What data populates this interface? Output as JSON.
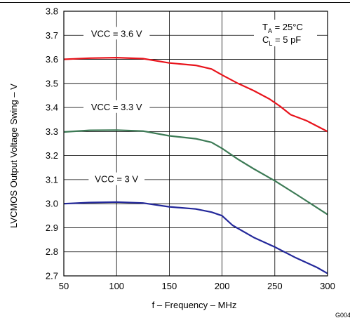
{
  "chart_data": {
    "type": "line",
    "xlabel": "f – Frequency – MHz",
    "ylabel": "LVCMOS Output Voltage Swing – V",
    "xlim": [
      50,
      300
    ],
    "ylim": [
      2.7,
      3.8
    ],
    "xticks": [
      "50",
      "100",
      "150",
      "200",
      "250",
      "300"
    ],
    "yticks": [
      "3.8",
      "3.7",
      "3.6",
      "3.5",
      "3.4",
      "3.3",
      "3.2",
      "3.1",
      "3.0",
      "2.9",
      "2.8",
      "2.7"
    ],
    "grid": true,
    "conditions": {
      "ta_main": "T",
      "ta_sub": "A",
      "ta_rest": " = 25°C",
      "cl_main": "C",
      "cl_sub": "L",
      "cl_rest": " = 5 pF"
    },
    "figure_code": "G004",
    "series": [
      {
        "name": "VCC = 3.6 V",
        "color": "#e8131b",
        "x": [
          50,
          75,
          100,
          125,
          150,
          175,
          190,
          200,
          215,
          230,
          245,
          255,
          265,
          280,
          300
        ],
        "y": [
          3.6,
          3.605,
          3.607,
          3.603,
          3.585,
          3.575,
          3.56,
          3.535,
          3.5,
          3.47,
          3.435,
          3.405,
          3.37,
          3.345,
          3.3
        ]
      },
      {
        "name": "VCC = 3.3 V",
        "color": "#3c7a55",
        "x": [
          50,
          75,
          100,
          125,
          150,
          175,
          190,
          200,
          215,
          230,
          250,
          270,
          300
        ],
        "y": [
          3.298,
          3.305,
          3.306,
          3.302,
          3.282,
          3.27,
          3.255,
          3.23,
          3.185,
          3.145,
          3.095,
          3.04,
          2.955
        ]
      },
      {
        "name": "VCC = 3 V",
        "color": "#23289a",
        "x": [
          50,
          75,
          100,
          125,
          150,
          175,
          190,
          200,
          210,
          230,
          250,
          270,
          290,
          300
        ],
        "y": [
          3.0,
          3.005,
          3.007,
          3.003,
          2.987,
          2.978,
          2.965,
          2.95,
          2.91,
          2.86,
          2.82,
          2.775,
          2.735,
          2.71
        ]
      }
    ]
  }
}
